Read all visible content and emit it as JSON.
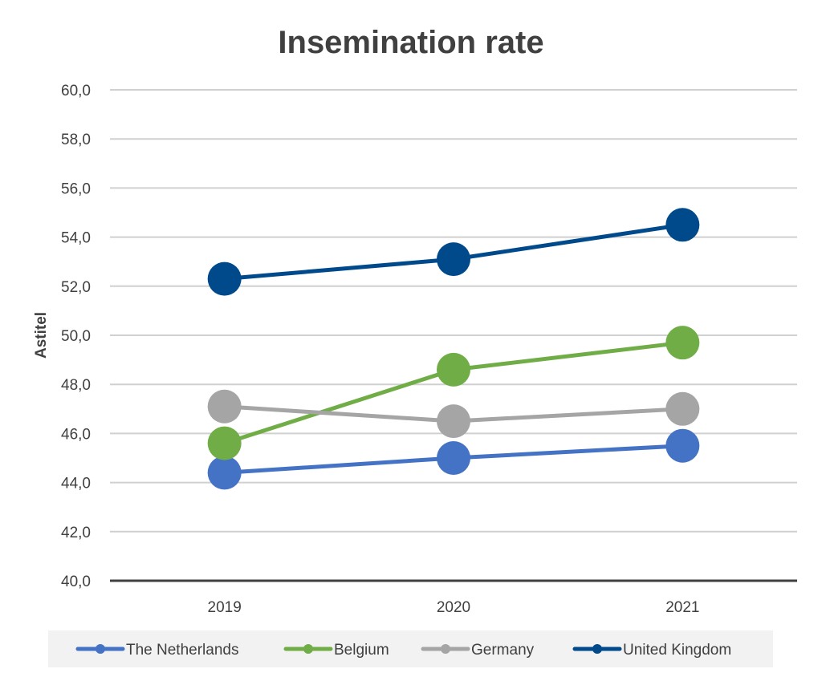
{
  "chart_data": {
    "type": "line",
    "title": "Insemination rate",
    "xlabel": "",
    "ylabel": "Astitel",
    "categories": [
      "2019",
      "2020",
      "2021"
    ],
    "ylim": [
      40,
      60
    ],
    "yticks": [
      "40,0",
      "42,0",
      "44,0",
      "46,0",
      "48,0",
      "50,0",
      "52,0",
      "54,0",
      "56,0",
      "58,0",
      "60,0"
    ],
    "grid": true,
    "legend_position": "bottom",
    "series": [
      {
        "name": "The Netherlands",
        "color": "#4472C4",
        "values": [
          44.4,
          45.0,
          45.5
        ]
      },
      {
        "name": "Belgium",
        "color": "#70AD47",
        "values": [
          45.6,
          48.6,
          49.7
        ]
      },
      {
        "name": "Germany",
        "color": "#A5A5A5",
        "values": [
          47.1,
          46.5,
          47.0
        ]
      },
      {
        "name": "United Kingdom",
        "color": "#004A8C",
        "values": [
          52.3,
          53.1,
          54.5
        ]
      }
    ]
  }
}
